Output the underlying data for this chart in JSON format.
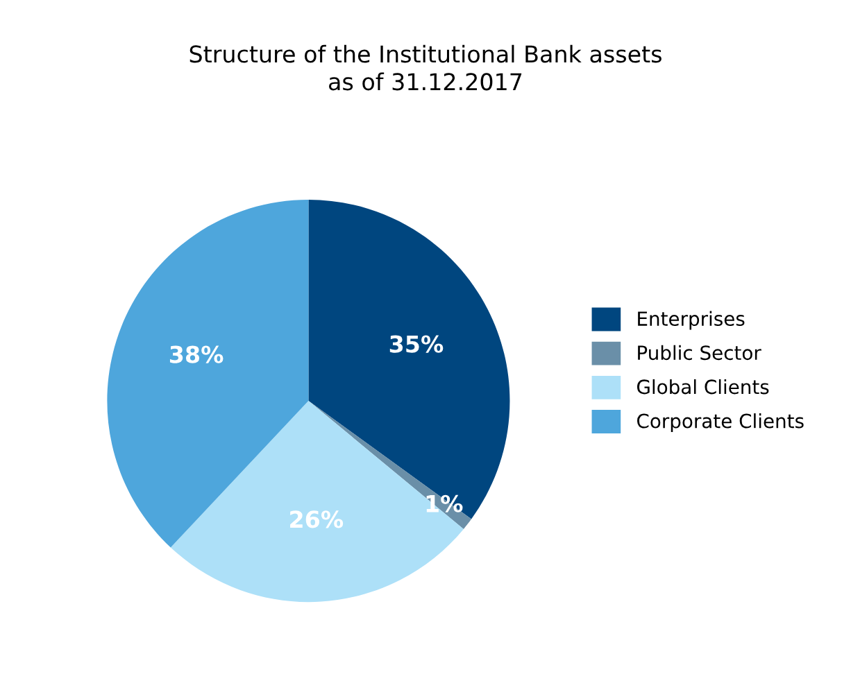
{
  "chart_data": {
    "type": "pie",
    "title": "Structure of the Institutional Bank assets\nas of 31.12.2017",
    "categories": [
      "Enterprises",
      "Public Sector",
      "Global Clients",
      "Corporate Clients"
    ],
    "values": [
      35,
      1,
      26,
      38
    ],
    "value_labels": [
      "35%",
      "1%",
      "26%",
      "38%"
    ],
    "colors": [
      "#00467f",
      "#6a8fa8",
      "#ade0f8",
      "#4ea6dc"
    ],
    "legend": "right"
  }
}
